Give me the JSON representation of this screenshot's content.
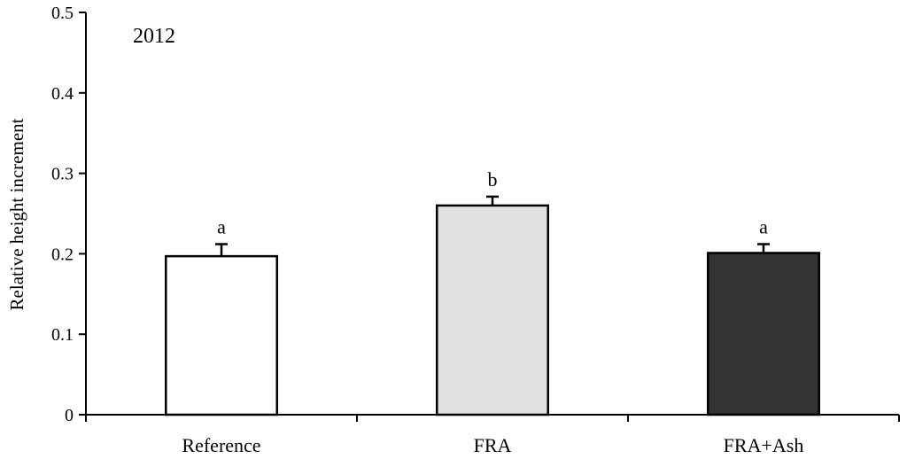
{
  "chart_data": {
    "type": "bar",
    "title": "2012",
    "ylabel": "Relative height increment",
    "xlabel": "",
    "ylim": [
      0,
      0.5
    ],
    "yticks": [
      "0",
      "0.1",
      "0.2",
      "0.3",
      "0.4",
      "0.5"
    ],
    "grid": false,
    "categories": [
      "Reference",
      "FRA",
      "FRA+Ash"
    ],
    "values": [
      0.197,
      0.26,
      0.201
    ],
    "errors": [
      0.015,
      0.011,
      0.011
    ],
    "significance": [
      "a",
      "b",
      "a"
    ],
    "bar_colors": [
      "#ffffff",
      "#e0e0e0",
      "#333333"
    ],
    "bar_edge_color": "#000000"
  }
}
